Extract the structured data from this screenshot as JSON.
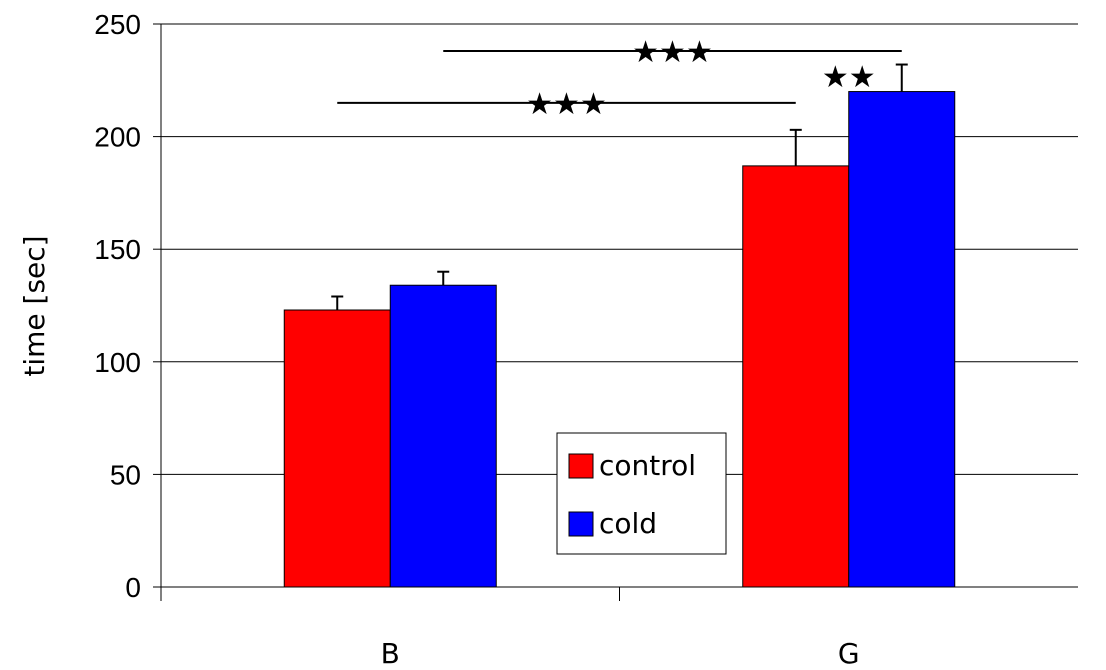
{
  "chart_data": {
    "type": "bar",
    "categories": [
      "B",
      "G"
    ],
    "series": [
      {
        "name": "control",
        "color": "#ff0000",
        "values": [
          123,
          187
        ],
        "errors": [
          6,
          16
        ]
      },
      {
        "name": "cold",
        "color": "#0000ff",
        "values": [
          134,
          220
        ],
        "errors": [
          6,
          12
        ]
      }
    ],
    "ylabel": "time [sec]",
    "xlabel": "",
    "ylim": [
      0,
      250
    ],
    "yticks": [
      0,
      50,
      100,
      150,
      200,
      250
    ],
    "grid": true,
    "legend_position": "center-bottom",
    "annotations": [
      {
        "label": "★★★",
        "from": "B control",
        "to": "G control",
        "y": 215
      },
      {
        "label": "★★★",
        "from": "B cold",
        "to": "G cold",
        "y": 238
      },
      {
        "label": "★★",
        "from": "G control",
        "to": "G cold",
        "y": 227
      }
    ]
  }
}
